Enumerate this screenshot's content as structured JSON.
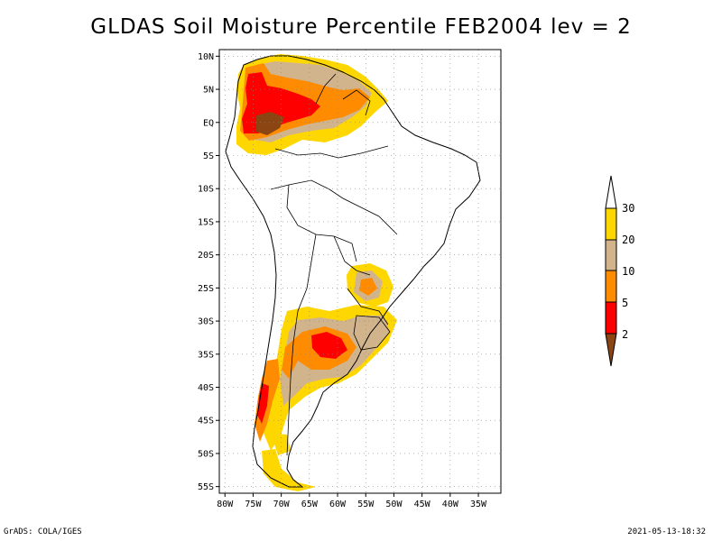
{
  "title": "GLDAS Soil Moisture Percentile FEB2004 lev = 2",
  "footer": {
    "left": "GrADS: COLA/IGES",
    "right": "2021-05-13-18:32"
  },
  "map": {
    "region": "South America",
    "lon_labels": [
      "80W",
      "75W",
      "70W",
      "65W",
      "60W",
      "55W",
      "50W",
      "45W",
      "40W",
      "35W"
    ],
    "lat_labels": [
      "10N",
      "5N",
      "EQ",
      "5S",
      "10S",
      "15S",
      "20S",
      "25S",
      "30S",
      "35S",
      "40S",
      "45S",
      "50S",
      "55S"
    ],
    "lon_range": [
      -81,
      -31
    ],
    "lat_range": [
      11,
      -56
    ],
    "grid": true
  },
  "legend": {
    "labels": [
      "30",
      "20",
      "10",
      "5",
      "2"
    ],
    "colors": [
      "#ffffff",
      "#ffd700",
      "#d2b48c",
      "#ff8c00",
      "#ff0000",
      "#8b4513"
    ]
  },
  "colors": {
    "c30": "#ffd700",
    "c20": "#d2b48c",
    "c10": "#ff8c00",
    "c5": "#ff0000",
    "c2": "#8b4513"
  }
}
